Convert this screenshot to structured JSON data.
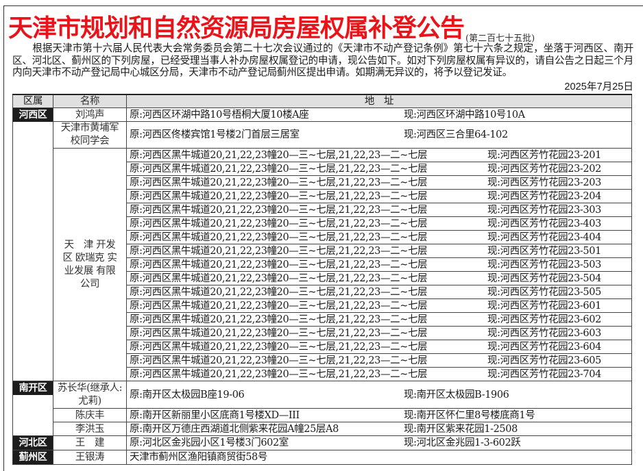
{
  "title": "天津市规划和自然资源局房屋权属补登公告",
  "batch": "(第二百七十五批)",
  "intro": "根据天津市第十六届人民代表大会常务委员会第二十七次会议通过的《天津市不动产登记条例》第七十六条之规定，坐落于河西区、南开区、河北区、蓟州区的下列房屋，已经受理当事人补办房屋权属登记的申请，现公告如下。如对下列房屋权属有异议的，请自公告之日起三个月内向天津市不动产登记局中心城区分局，天津市不动产登记局蓟州区提出申请。如期满无异议的，将予以登记发证。",
  "date": "2025年7月25日",
  "table": {
    "headers": [
      "区属",
      "名称",
      "地　址"
    ],
    "hexi": {
      "district": "河西区",
      "r1": {
        "name": "刘鸿声",
        "orig": "原:河西区环湖中路10号梧桐大厦10楼A座",
        "now": "现:河西区环湖中路10号10A"
      },
      "r2": {
        "name": "天津市黄埔军校同学会",
        "orig": "原:河西区佟楼宾馆1号楼2门首层三居室",
        "now": "现:河西区三合里64-102"
      },
      "company": "天　津 开发区 欧瑞克 实业发展 有限公司",
      "company_orig": "原:河西区黑牛城道20,21,22,23幢20—三~七层,21,22,23—二~七层",
      "company_now": [
        "现:河西区芳竹花园23-201",
        "现:河西区芳竹花园23-202",
        "现:河西区芳竹花园23-203",
        "现:河西区芳竹花园23-204",
        "现:河西区芳竹花园23-303",
        "现:河西区芳竹花园23-403",
        "现:河西区芳竹花园23-404",
        "现:河西区芳竹花园23-501",
        "现:河西区芳竹花园23-503",
        "现:河西区芳竹花园23-504",
        "现:河西区芳竹花园23-505",
        "现:河西区芳竹花园23-601",
        "现:河西区芳竹花园23-602",
        "现:河西区芳竹花园23-603",
        "现:河西区芳竹花园23-604",
        "现:河西区芳竹花园23-605",
        "现:河西区芳竹花园23-704"
      ]
    },
    "nankai": {
      "district": "南开区",
      "rows": [
        {
          "name": "苏长华(继承人:尤莉)",
          "orig": "原:南开区太极园B座19-06",
          "now": "现:南开区太极园B-1906"
        },
        {
          "name": "陈庆丰",
          "orig": "原:南开区新丽里小区底商1号楼XD—III",
          "now": "现:南开区怀仁里8号楼底商1号"
        },
        {
          "name": "李洪玉",
          "orig": "原:南开区万德庄西湖道北侧紫来花园A幢25层A8",
          "now": "现:南开区紫来花园1-2508"
        }
      ]
    },
    "hebei": {
      "district": "河北区",
      "name": "王　建",
      "orig": "原:河北区金兆园小区1号楼3门602室",
      "now": "现:河北区金兆园1-3-602跃"
    },
    "jizhou": {
      "district": "蓟州区",
      "name": "王银涛",
      "addr": "天津市蓟州区渔阳镇商贸街58号"
    }
  }
}
